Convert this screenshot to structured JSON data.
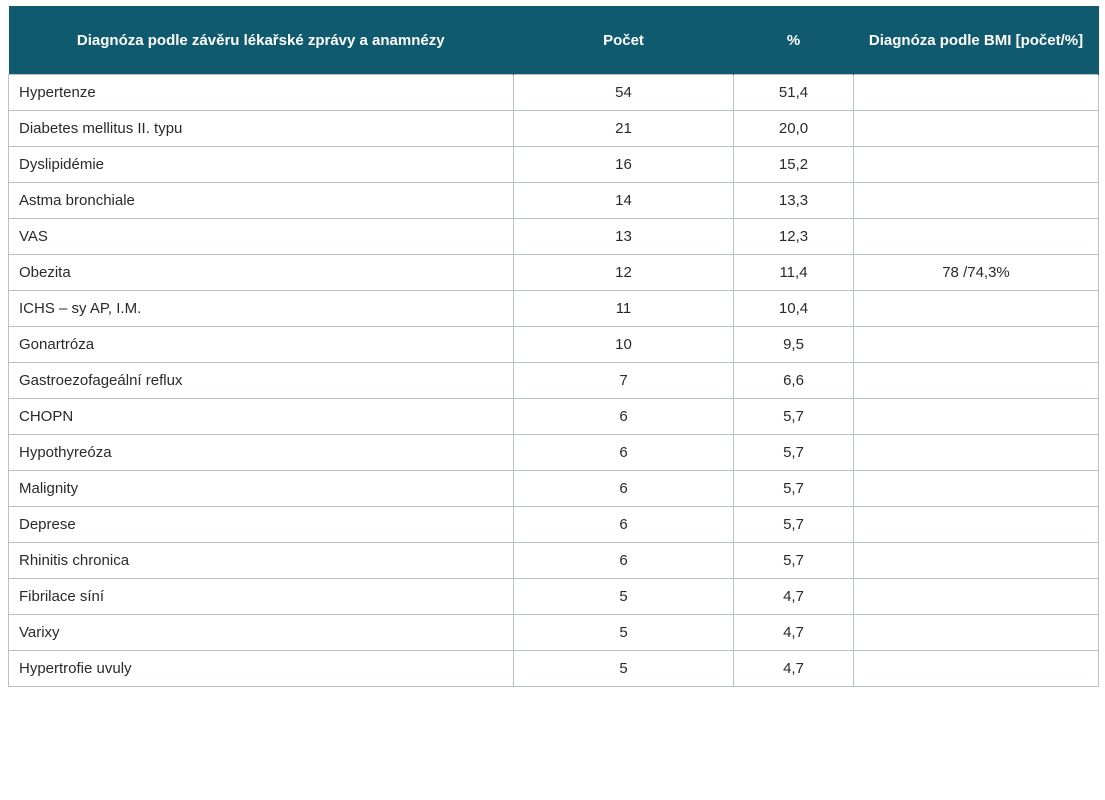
{
  "table": {
    "headers": {
      "diagnosis": "Diagnóza podle závěru lékařské zprávy a anamnézy",
      "count": "Počet",
      "percent": "%",
      "bmi": "Diagnóza podle BMI [počet/%]"
    },
    "rows": [
      {
        "name": "Hypertenze",
        "count": "54",
        "percent": "51,4",
        "bmi": ""
      },
      {
        "name": "Diabetes mellitus II. typu",
        "count": "21",
        "percent": "20,0",
        "bmi": ""
      },
      {
        "name": "Dyslipidémie",
        "count": "16",
        "percent": "15,2",
        "bmi": ""
      },
      {
        "name": "Astma bronchiale",
        "count": "14",
        "percent": "13,3",
        "bmi": ""
      },
      {
        "name": "VAS",
        "count": "13",
        "percent": "12,3",
        "bmi": ""
      },
      {
        "name": "Obezita",
        "count": "12",
        "percent": "11,4",
        "bmi": "78 /74,3%"
      },
      {
        "name": "ICHS – sy AP, I.M.",
        "count": "11",
        "percent": "10,4",
        "bmi": ""
      },
      {
        "name": "Gonartróza",
        "count": "10",
        "percent": "9,5",
        "bmi": ""
      },
      {
        "name": "Gastroezofageální reflux",
        "count": "7",
        "percent": "6,6",
        "bmi": ""
      },
      {
        "name": "CHOPN",
        "count": "6",
        "percent": "5,7",
        "bmi": ""
      },
      {
        "name": "Hypothyreóza",
        "count": "6",
        "percent": "5,7",
        "bmi": ""
      },
      {
        "name": "Malignity",
        "count": "6",
        "percent": "5,7",
        "bmi": ""
      },
      {
        "name": "Deprese",
        "count": "6",
        "percent": "5,7",
        "bmi": ""
      },
      {
        "name": "Rhinitis chronica",
        "count": "6",
        "percent": "5,7",
        "bmi": ""
      },
      {
        "name": "Fibrilace síní",
        "count": "5",
        "percent": "4,7",
        "bmi": ""
      },
      {
        "name": "Varixy",
        "count": "5",
        "percent": "4,7",
        "bmi": ""
      },
      {
        "name": "Hypertrofie uvuly",
        "count": "5",
        "percent": "4,7",
        "bmi": ""
      }
    ]
  },
  "colors": {
    "header_bg": "#0f5a6e",
    "header_text": "#ffffff",
    "border": "#b9c2c6"
  }
}
